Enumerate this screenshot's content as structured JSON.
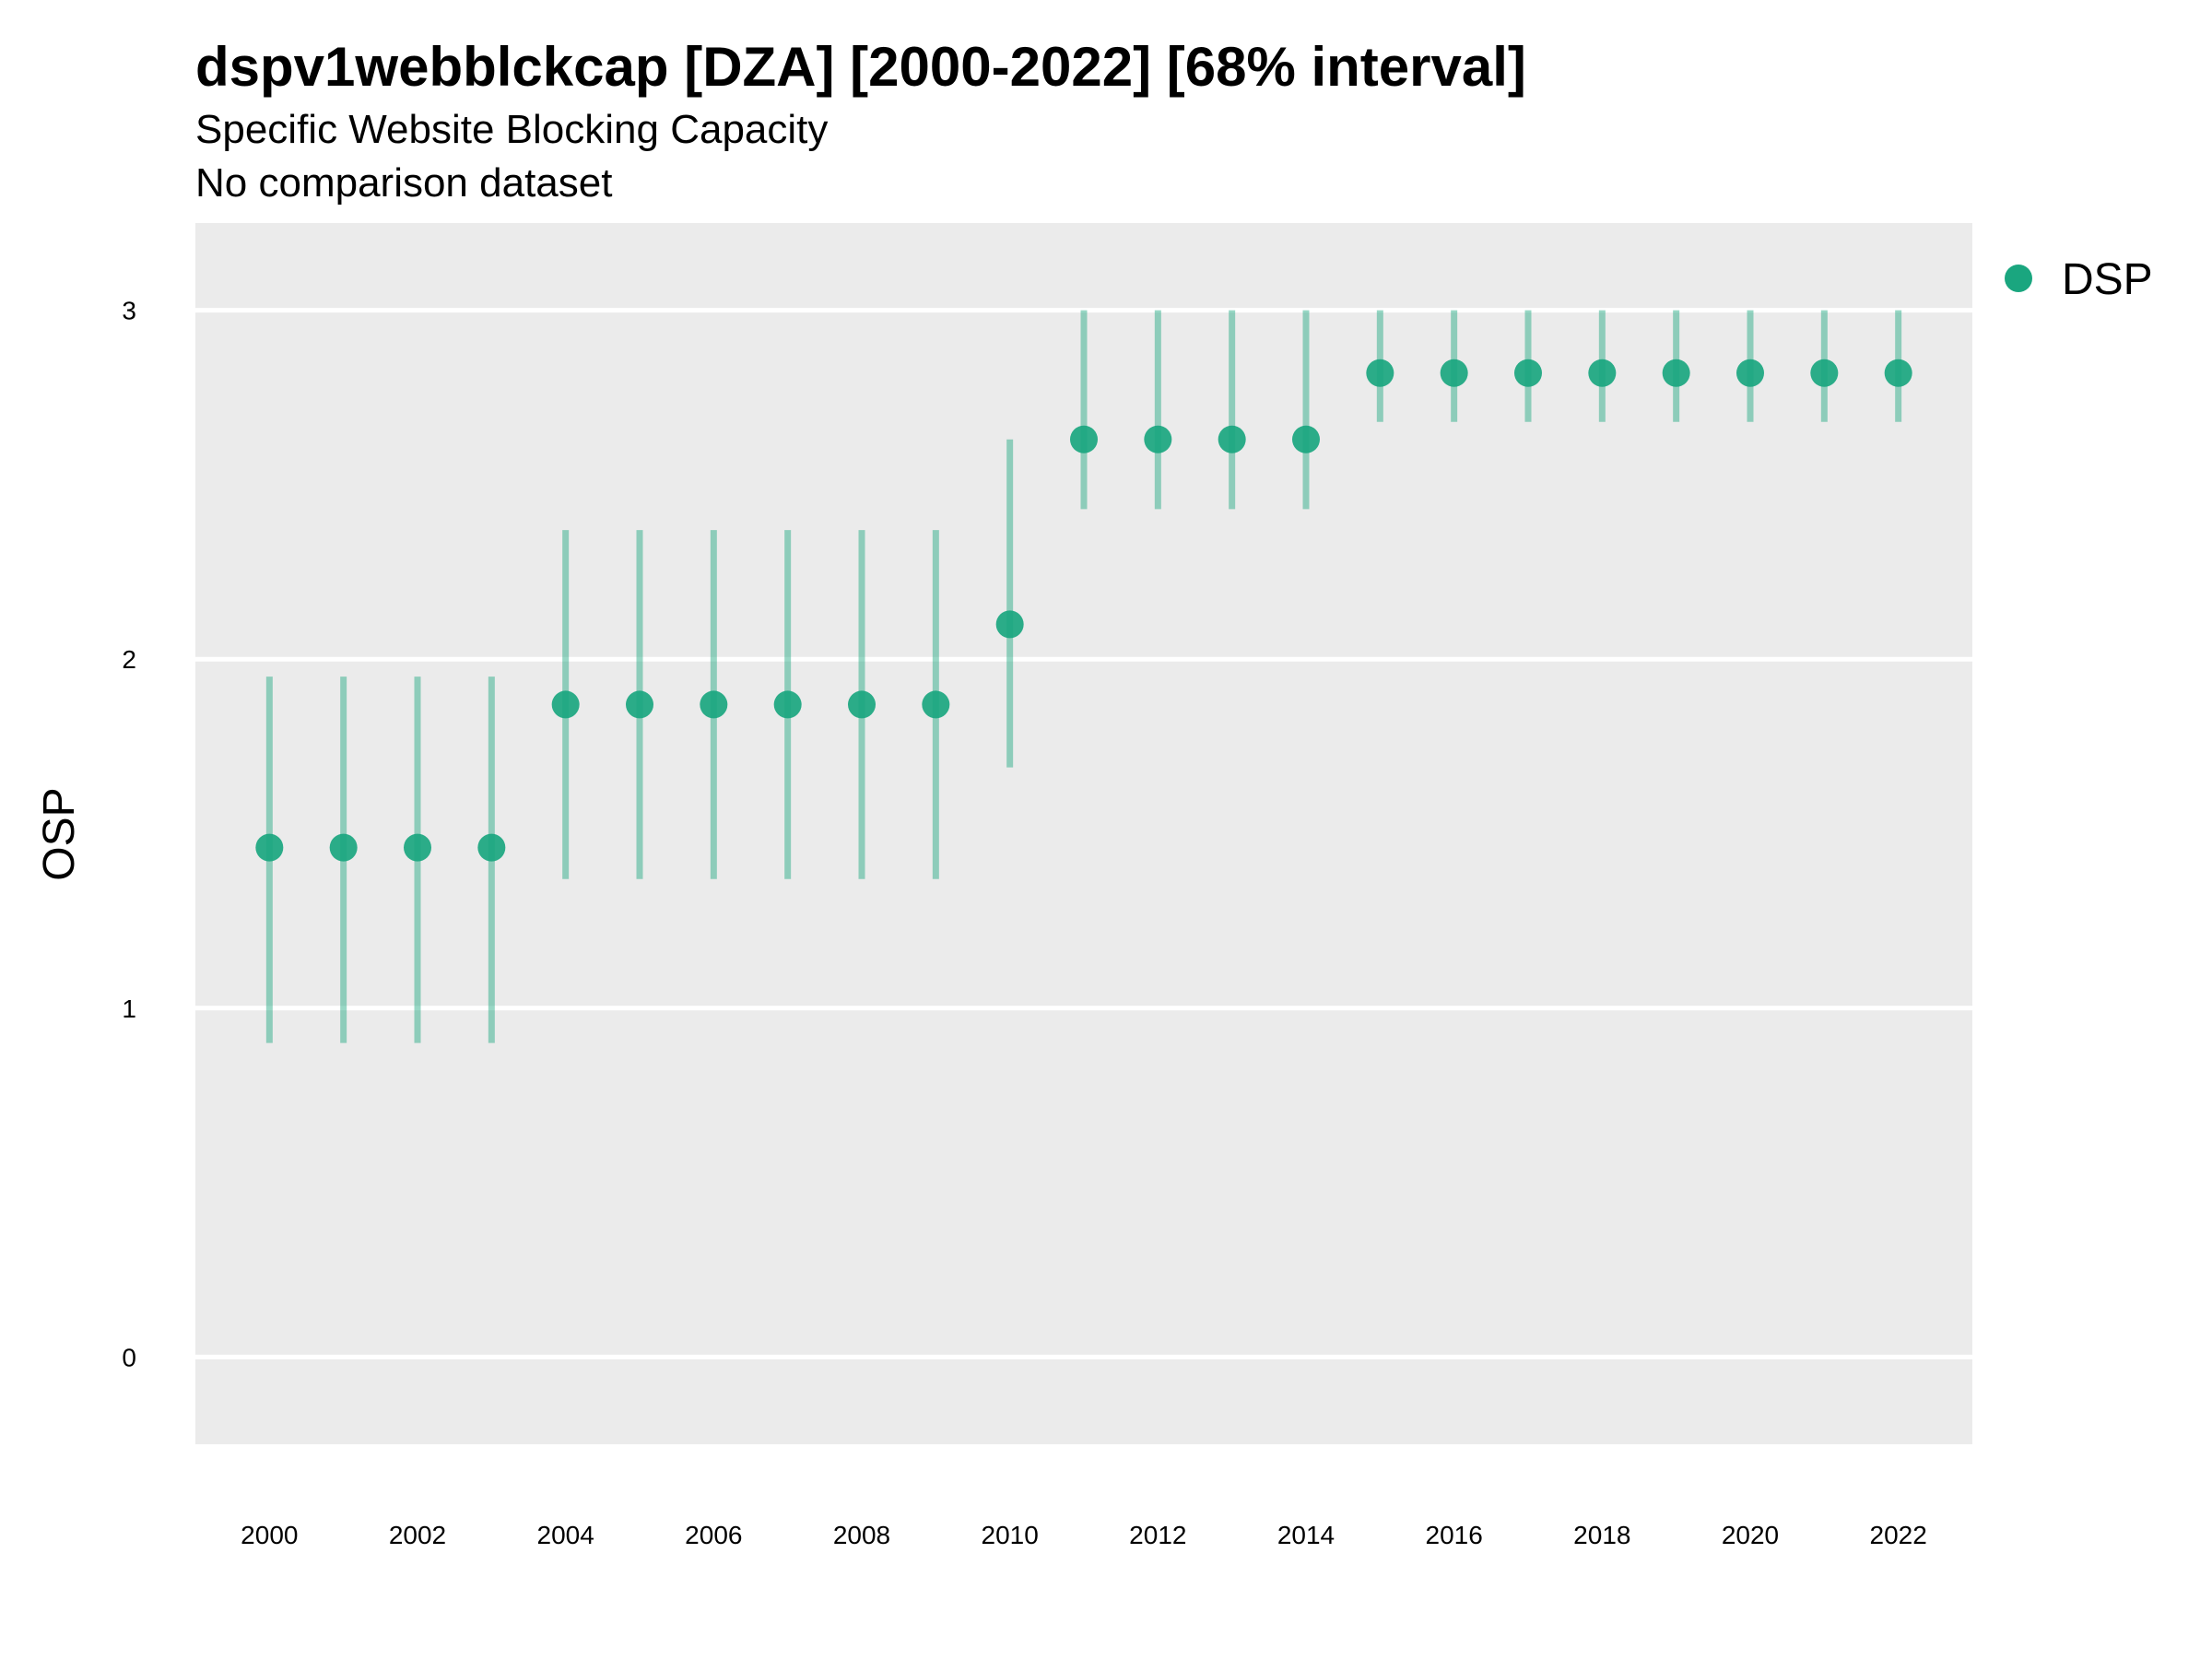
{
  "chart_data": {
    "type": "scatter",
    "title": "dspv1webblckcap [DZA] [2000-2022] [68% interval]",
    "subtitle": "Specific Website Blocking Capacity",
    "caption": "No comparison dataset",
    "xlabel": "",
    "ylabel": "OSP",
    "xlim": [
      1999,
      2023
    ],
    "ylim": [
      -0.25,
      3.25
    ],
    "x_ticks": [
      2000,
      2002,
      2004,
      2006,
      2008,
      2010,
      2012,
      2014,
      2016,
      2018,
      2020,
      2022
    ],
    "y_ticks": [
      0,
      1,
      2,
      3
    ],
    "grid": "horizontal",
    "legend_position": "top-right",
    "series": [
      {
        "name": "DSP",
        "color": "#1aa67f",
        "x": [
          2000,
          2001,
          2002,
          2003,
          2004,
          2005,
          2006,
          2007,
          2008,
          2009,
          2010,
          2011,
          2012,
          2013,
          2014,
          2015,
          2016,
          2017,
          2018,
          2019,
          2020,
          2021,
          2022
        ],
        "y": [
          1.46,
          1.46,
          1.46,
          1.46,
          1.87,
          1.87,
          1.87,
          1.87,
          1.87,
          1.87,
          2.1,
          2.63,
          2.63,
          2.63,
          2.63,
          2.82,
          2.82,
          2.82,
          2.82,
          2.82,
          2.82,
          2.82,
          2.82
        ],
        "lower": [
          0.9,
          0.9,
          0.9,
          0.9,
          1.37,
          1.37,
          1.37,
          1.37,
          1.37,
          1.37,
          1.69,
          2.43,
          2.43,
          2.43,
          2.43,
          2.68,
          2.68,
          2.68,
          2.68,
          2.68,
          2.68,
          2.68,
          2.68
        ],
        "upper": [
          1.95,
          1.95,
          1.95,
          1.95,
          2.37,
          2.37,
          2.37,
          2.37,
          2.37,
          2.37,
          2.63,
          3.0,
          3.0,
          3.0,
          3.0,
          3.0,
          3.0,
          3.0,
          3.0,
          3.0,
          3.0,
          3.0,
          3.0
        ]
      }
    ]
  }
}
